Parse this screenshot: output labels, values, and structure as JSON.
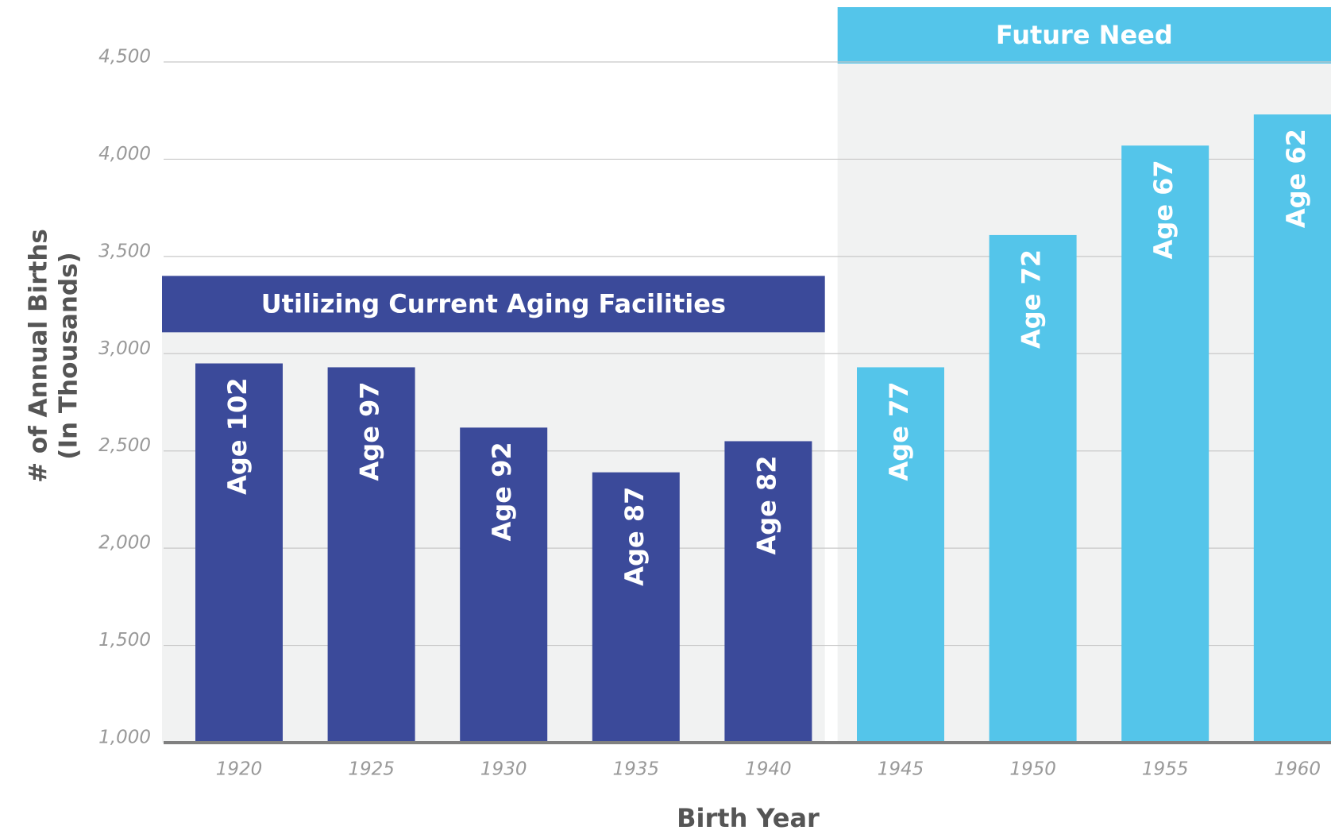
{
  "chart_data": {
    "type": "bar",
    "categories": [
      "1920",
      "1925",
      "1930",
      "1935",
      "1940",
      "1945",
      "1950",
      "1955",
      "1960"
    ],
    "series": [
      {
        "name": "Utilizing Current Aging Facilities",
        "color": "#3b4a9a",
        "values": [
          2950,
          2930,
          2620,
          2390,
          2550,
          null,
          null,
          null,
          null
        ],
        "labels": [
          "Age 102",
          "Age 97",
          "Age 92",
          "Age 87",
          "Age 82",
          null,
          null,
          null,
          null
        ]
      },
      {
        "name": "Future Need",
        "color": "#54c5ea",
        "values": [
          null,
          null,
          null,
          null,
          null,
          2930,
          3610,
          4070,
          4230
        ],
        "labels": [
          null,
          null,
          null,
          null,
          null,
          "Age 77",
          "Age 72",
          "Age 67",
          "Age 62"
        ]
      }
    ],
    "xlabel": "Birth Year",
    "ylabel": [
      "# of Annual Births",
      "(In Thousands)"
    ],
    "ylim": [
      1000,
      4500
    ],
    "yticks": [
      {
        "value": 1000,
        "label": "1,000"
      },
      {
        "value": 1500,
        "label": "1,500"
      },
      {
        "value": 2000,
        "label": "2,000"
      },
      {
        "value": 2500,
        "label": "2,500"
      },
      {
        "value": 3000,
        "label": "3,000"
      },
      {
        "value": 3500,
        "label": "3,500"
      },
      {
        "value": 4000,
        "label": "4,000"
      },
      {
        "value": 4500,
        "label": "4,500"
      }
    ],
    "grid": true
  }
}
